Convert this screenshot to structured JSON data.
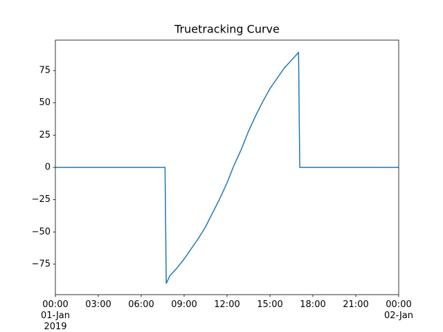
{
  "chart_data": {
    "type": "line",
    "title": "Truetracking Curve",
    "x": [
      "2019-01-01 00:00",
      "2019-01-01 07:40",
      "2019-01-01 07:45",
      "2019-01-01 08:00",
      "2019-01-01 08:30",
      "2019-01-01 09:00",
      "2019-01-01 09:30",
      "2019-01-01 10:00",
      "2019-01-01 10:30",
      "2019-01-01 11:00",
      "2019-01-01 11:30",
      "2019-01-01 12:00",
      "2019-01-01 12:30",
      "2019-01-01 13:00",
      "2019-01-01 13:30",
      "2019-01-01 14:00",
      "2019-01-01 14:30",
      "2019-01-01 15:00",
      "2019-01-01 15:30",
      "2019-01-01 16:00",
      "2019-01-01 16:30",
      "2019-01-01 17:00",
      "2019-01-01 17:05",
      "2019-01-02 00:00"
    ],
    "series": [
      {
        "color": "#1f77b4",
        "values": [
          0,
          0,
          -90,
          -84,
          -78,
          -71,
          -63,
          -55,
          -46,
          -35,
          -24,
          -12,
          2,
          14,
          28,
          40,
          51,
          61,
          69,
          77,
          83,
          89,
          0,
          0
        ]
      }
    ],
    "xlim": [
      "2019-01-01 00:00",
      "2019-01-02 00:00"
    ],
    "xticks": [
      {
        "value": "2019-01-01 00:00",
        "label": "00:00\n01-Jan\n2019"
      },
      {
        "value": "2019-01-01 03:00",
        "label": "03:00"
      },
      {
        "value": "2019-01-01 06:00",
        "label": "06:00"
      },
      {
        "value": "2019-01-01 09:00",
        "label": "09:00"
      },
      {
        "value": "2019-01-01 12:00",
        "label": "12:00"
      },
      {
        "value": "2019-01-01 15:00",
        "label": "15:00"
      },
      {
        "value": "2019-01-01 18:00",
        "label": "18:00"
      },
      {
        "value": "2019-01-01 21:00",
        "label": "21:00"
      },
      {
        "value": "2019-01-02 00:00",
        "label": "00:00\n02-Jan"
      }
    ],
    "ylim": [
      -98.6,
      98.6
    ],
    "yticks": [
      {
        "value": -75,
        "label": "−75"
      },
      {
        "value": -50,
        "label": "−50"
      },
      {
        "value": -25,
        "label": "−25"
      },
      0,
      25,
      50,
      75
    ]
  }
}
